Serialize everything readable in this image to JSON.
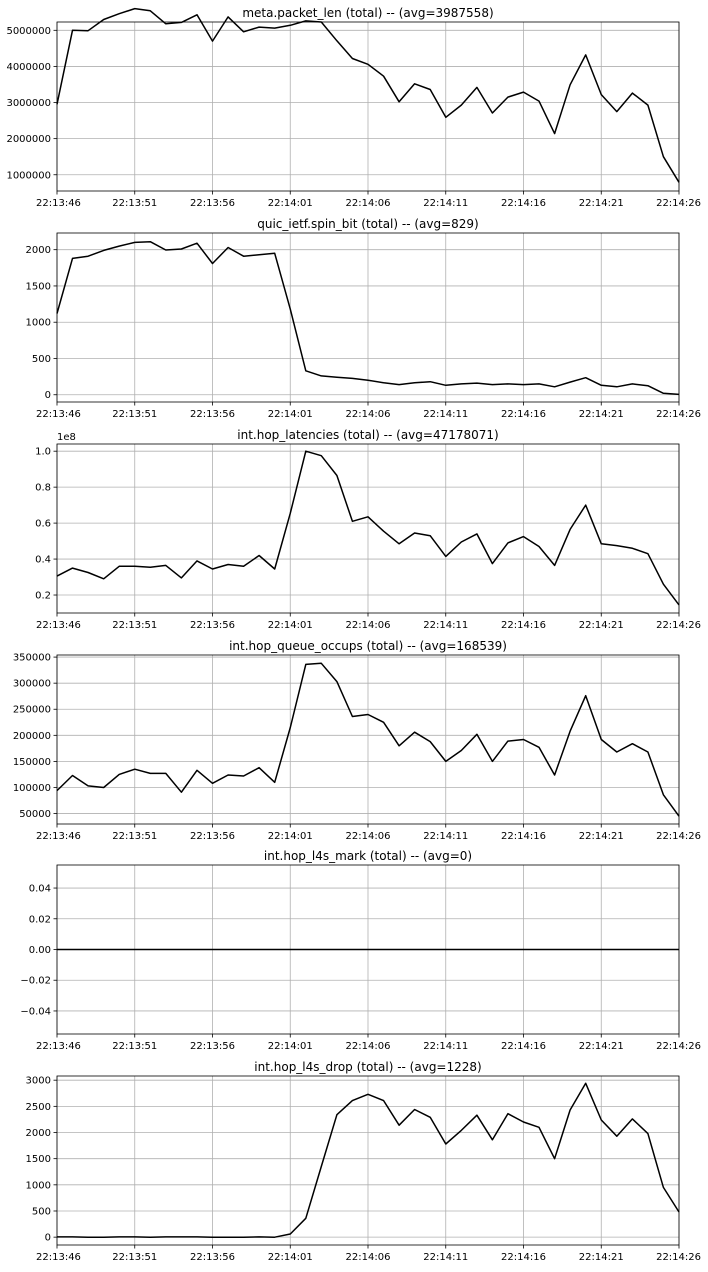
{
  "chart_data": [
    {
      "type": "line",
      "title": "meta.packet_len (total) -- (avg=3987558)",
      "x_ticks": [
        "22:13:46",
        "22:13:51",
        "22:13:56",
        "22:14:01",
        "22:14:06",
        "22:14:11",
        "22:14:16",
        "22:14:21",
        "22:14:26"
      ],
      "y_ticks": [
        "1000000",
        "2000000",
        "3000000",
        "4000000",
        "5000000"
      ],
      "y_tick_values": [
        1000000,
        2000000,
        3000000,
        4000000,
        5000000
      ],
      "offset_label": "",
      "ylim": [
        550000,
        5230000
      ],
      "grid": true,
      "x": [
        0,
        1,
        2,
        3,
        4,
        5,
        6,
        7,
        8,
        9,
        10,
        11,
        12,
        13,
        14,
        15,
        16,
        17,
        18,
        19,
        20,
        21,
        22,
        23,
        24,
        25,
        26,
        27,
        28,
        29,
        30,
        31,
        32,
        33,
        34,
        35,
        36,
        37,
        38,
        39,
        40
      ],
      "values": [
        2950000,
        5000000,
        4990000,
        5300000,
        5460000,
        5600000,
        5540000,
        5180000,
        5220000,
        5430000,
        4700000,
        5370000,
        4960000,
        5090000,
        5060000,
        5140000,
        5260000,
        5230000,
        4710000,
        4220000,
        4060000,
        3730000,
        3020000,
        3520000,
        3360000,
        2590000,
        2930000,
        3420000,
        2710000,
        3150000,
        3290000,
        3040000,
        2140000,
        3490000,
        4320000,
        3220000,
        2750000,
        3260000,
        2930000,
        1500000,
        790000
      ]
    },
    {
      "type": "line",
      "title": "quic_ietf.spin_bit (total) -- (avg=829)",
      "x_ticks": [
        "22:13:46",
        "22:13:51",
        "22:13:56",
        "22:14:01",
        "22:14:06",
        "22:14:11",
        "22:14:16",
        "22:14:21",
        "22:14:26"
      ],
      "y_ticks": [
        "0",
        "500",
        "1000",
        "1500",
        "2000"
      ],
      "y_tick_values": [
        0,
        500,
        1000,
        1500,
        2000
      ],
      "offset_label": "",
      "ylim": [
        -100,
        2230
      ],
      "grid": true,
      "x": [
        0,
        1,
        2,
        3,
        4,
        5,
        6,
        7,
        8,
        9,
        10,
        11,
        12,
        13,
        14,
        15,
        16,
        17,
        18,
        19,
        20,
        21,
        22,
        23,
        24,
        25,
        26,
        27,
        28,
        29,
        30,
        31,
        32,
        33,
        34,
        35,
        36,
        37,
        38,
        39,
        40
      ],
      "values": [
        1120,
        1880,
        1910,
        1990,
        2050,
        2100,
        2110,
        1995,
        2010,
        2090,
        1810,
        2030,
        1910,
        1930,
        1950,
        1180,
        330,
        260,
        240,
        225,
        200,
        165,
        140,
        165,
        180,
        130,
        150,
        160,
        140,
        150,
        140,
        150,
        110,
        175,
        235,
        130,
        110,
        150,
        125,
        20,
        5
      ]
    },
    {
      "type": "line",
      "title": "int.hop_latencies (total) -- (avg=47178071)",
      "x_ticks": [
        "22:13:46",
        "22:13:51",
        "22:13:56",
        "22:14:01",
        "22:14:06",
        "22:14:11",
        "22:14:16",
        "22:14:21",
        "22:14:26"
      ],
      "y_ticks": [
        "0.2",
        "0.4",
        "0.6",
        "0.8",
        "1.0"
      ],
      "y_tick_values": [
        0.2,
        0.4,
        0.6,
        0.8,
        1.0
      ],
      "offset_label": "1e8",
      "ylim": [
        0.1,
        1.04
      ],
      "grid": true,
      "x": [
        0,
        1,
        2,
        3,
        4,
        5,
        6,
        7,
        8,
        9,
        10,
        11,
        12,
        13,
        14,
        15,
        16,
        17,
        18,
        19,
        20,
        21,
        22,
        23,
        24,
        25,
        26,
        27,
        28,
        29,
        30,
        31,
        32,
        33,
        34,
        35,
        36,
        37,
        38,
        39,
        40
      ],
      "values": [
        0.305,
        0.35,
        0.325,
        0.29,
        0.36,
        0.36,
        0.355,
        0.365,
        0.295,
        0.39,
        0.345,
        0.37,
        0.36,
        0.42,
        0.345,
        0.655,
        1.0,
        0.975,
        0.865,
        0.61,
        0.635,
        0.555,
        0.485,
        0.545,
        0.53,
        0.415,
        0.495,
        0.54,
        0.375,
        0.49,
        0.525,
        0.47,
        0.365,
        0.565,
        0.7,
        0.485,
        0.475,
        0.46,
        0.43,
        0.26,
        0.145
      ]
    },
    {
      "type": "line",
      "title": "int.hop_queue_occups (total) -- (avg=168539)",
      "x_ticks": [
        "22:13:46",
        "22:13:51",
        "22:13:56",
        "22:14:01",
        "22:14:06",
        "22:14:11",
        "22:14:16",
        "22:14:21",
        "22:14:26"
      ],
      "y_ticks": [
        "50000",
        "100000",
        "150000",
        "200000",
        "250000",
        "300000",
        "350000"
      ],
      "y_tick_values": [
        50000,
        100000,
        150000,
        200000,
        250000,
        300000,
        350000
      ],
      "offset_label": "",
      "ylim": [
        30000,
        354000
      ],
      "grid": true,
      "x": [
        0,
        1,
        2,
        3,
        4,
        5,
        6,
        7,
        8,
        9,
        10,
        11,
        12,
        13,
        14,
        15,
        16,
        17,
        18,
        19,
        20,
        21,
        22,
        23,
        24,
        25,
        26,
        27,
        28,
        29,
        30,
        31,
        32,
        33,
        34,
        35,
        36,
        37,
        38,
        39,
        40
      ],
      "values": [
        94000,
        123000,
        103000,
        100000,
        125000,
        135000,
        127000,
        127000,
        91000,
        133000,
        108000,
        124000,
        122000,
        138000,
        110000,
        215000,
        336000,
        338000,
        303000,
        236000,
        240000,
        225000,
        180000,
        206000,
        188000,
        150000,
        171000,
        202000,
        150000,
        189000,
        192000,
        177000,
        124000,
        208000,
        276000,
        192000,
        168000,
        184000,
        168000,
        86000,
        45000
      ]
    },
    {
      "type": "line",
      "title": "int.hop_l4s_mark (total) -- (avg=0)",
      "x_ticks": [
        "22:13:46",
        "22:13:51",
        "22:13:56",
        "22:14:01",
        "22:14:06",
        "22:14:11",
        "22:14:16",
        "22:14:21",
        "22:14:26"
      ],
      "y_ticks": [
        "−0.04",
        "−0.02",
        "0.00",
        "0.02",
        "0.04"
      ],
      "y_tick_values": [
        -0.04,
        -0.02,
        0,
        0.02,
        0.04
      ],
      "offset_label": "",
      "ylim": [
        -0.055,
        0.055
      ],
      "grid": true,
      "x": [
        0,
        1,
        2,
        3,
        4,
        5,
        6,
        7,
        8,
        9,
        10,
        11,
        12,
        13,
        14,
        15,
        16,
        17,
        18,
        19,
        20,
        21,
        22,
        23,
        24,
        25,
        26,
        27,
        28,
        29,
        30,
        31,
        32,
        33,
        34,
        35,
        36,
        37,
        38,
        39,
        40
      ],
      "values": [
        0,
        0,
        0,
        0,
        0,
        0,
        0,
        0,
        0,
        0,
        0,
        0,
        0,
        0,
        0,
        0,
        0,
        0,
        0,
        0,
        0,
        0,
        0,
        0,
        0,
        0,
        0,
        0,
        0,
        0,
        0,
        0,
        0,
        0,
        0,
        0,
        0,
        0,
        0,
        0,
        0
      ]
    },
    {
      "type": "line",
      "title": "int.hop_l4s_drop (total) -- (avg=1228)",
      "x_ticks": [
        "22:13:46",
        "22:13:51",
        "22:13:56",
        "22:14:01",
        "22:14:06",
        "22:14:11",
        "22:14:16",
        "22:14:21",
        "22:14:26"
      ],
      "y_ticks": [
        "0",
        "500",
        "1000",
        "1500",
        "2000",
        "2500",
        "3000"
      ],
      "y_tick_values": [
        0,
        500,
        1000,
        1500,
        2000,
        2500,
        3000
      ],
      "offset_label": "",
      "ylim": [
        -150,
        3080
      ],
      "grid": true,
      "x": [
        0,
        1,
        2,
        3,
        4,
        5,
        6,
        7,
        8,
        9,
        10,
        11,
        12,
        13,
        14,
        15,
        16,
        17,
        18,
        19,
        20,
        21,
        22,
        23,
        24,
        25,
        26,
        27,
        28,
        29,
        30,
        31,
        32,
        33,
        34,
        35,
        36,
        37,
        38,
        39,
        40
      ],
      "values": [
        5,
        5,
        0,
        0,
        5,
        5,
        0,
        5,
        5,
        5,
        0,
        0,
        0,
        5,
        0,
        60,
        360,
        1350,
        2340,
        2610,
        2730,
        2610,
        2140,
        2440,
        2290,
        1780,
        2040,
        2330,
        1860,
        2360,
        2200,
        2100,
        1500,
        2430,
        2940,
        2240,
        1930,
        2260,
        1980,
        950,
        480
      ]
    }
  ]
}
